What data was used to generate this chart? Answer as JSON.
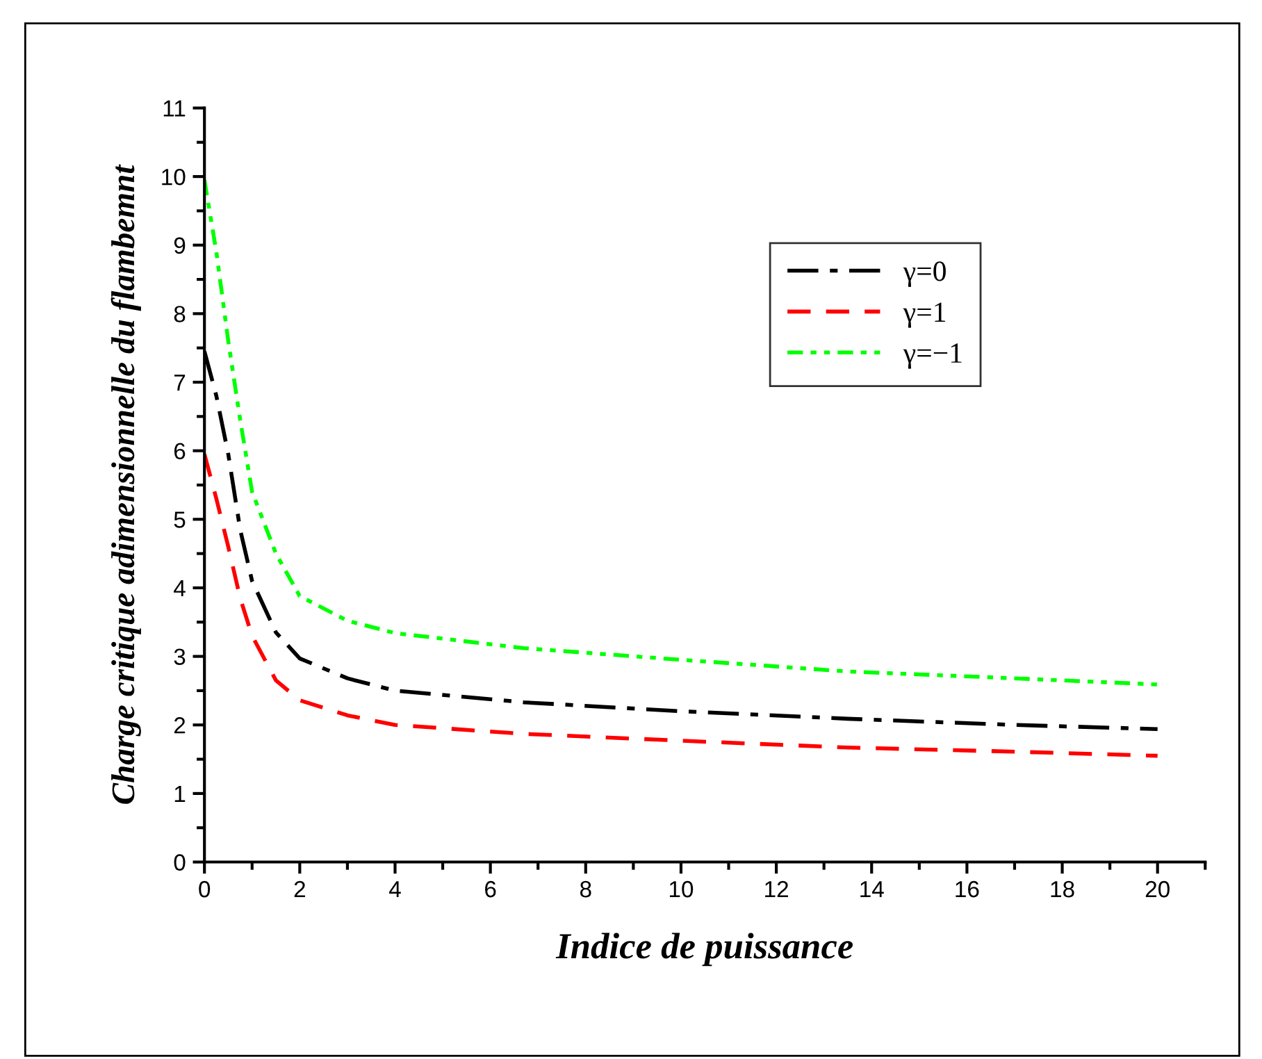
{
  "chart_data": {
    "type": "line",
    "xlabel": "Indice de puissance",
    "ylabel": "Charge critique adimensionnelle du flambemnt",
    "xlim": [
      0,
      21
    ],
    "ylim": [
      0,
      11
    ],
    "xticks": [
      0,
      2,
      4,
      6,
      8,
      10,
      12,
      14,
      16,
      18,
      20
    ],
    "yticks": [
      0,
      1,
      2,
      3,
      4,
      5,
      6,
      7,
      8,
      9,
      10,
      11
    ],
    "grid": false,
    "legend": "top right",
    "marker": "none",
    "x": [
      0,
      0.25,
      0.5,
      0.75,
      1,
      1.5,
      2,
      3,
      4,
      6.7,
      10,
      13.5,
      17,
      20
    ],
    "series": [
      {
        "name": "γ=0",
        "color": "#000000",
        "line_style": "dashdot",
        "values": [
          7.45,
          6.8,
          5.95,
          4.85,
          4.1,
          3.35,
          2.97,
          2.68,
          2.5,
          2.33,
          2.2,
          2.09,
          2.0,
          1.94
        ]
      },
      {
        "name": "γ=1",
        "color": "#ff0000",
        "line_style": "dashed",
        "values": [
          5.95,
          5.3,
          4.6,
          3.85,
          3.3,
          2.65,
          2.36,
          2.14,
          2.0,
          1.87,
          1.77,
          1.67,
          1.61,
          1.55
        ]
      },
      {
        "name": "γ=−1",
        "color": "#00ff00",
        "line_style": "dashdotdot",
        "values": [
          9.95,
          8.9,
          7.6,
          6.45,
          5.4,
          4.5,
          3.88,
          3.52,
          3.34,
          3.12,
          2.95,
          2.78,
          2.68,
          2.59
        ]
      }
    ]
  }
}
